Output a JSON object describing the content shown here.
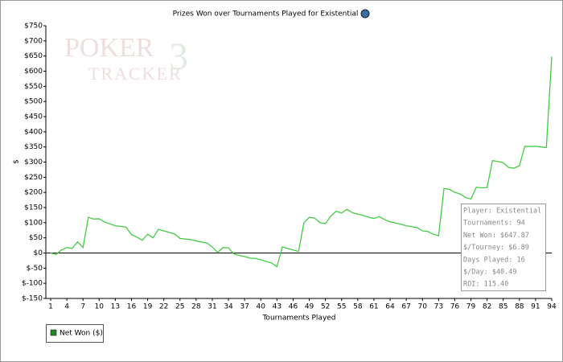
{
  "chart_data": {
    "type": "line",
    "title": "Prizes Won over Tournaments Played for Existential",
    "watermark": [
      "POKER",
      "TRACKER",
      "3"
    ],
    "x_label": "Tournaments Played",
    "y_label": "$",
    "x": [
      1,
      2,
      3,
      4,
      5,
      6,
      7,
      8,
      9,
      10,
      11,
      12,
      13,
      14,
      15,
      16,
      17,
      18,
      19,
      20,
      21,
      22,
      23,
      24,
      25,
      26,
      27,
      28,
      29,
      30,
      31,
      32,
      33,
      34,
      35,
      36,
      37,
      38,
      39,
      40,
      41,
      42,
      43,
      44,
      45,
      46,
      47,
      48,
      49,
      50,
      51,
      52,
      53,
      54,
      55,
      56,
      57,
      58,
      59,
      60,
      61,
      62,
      63,
      64,
      65,
      66,
      67,
      68,
      69,
      70,
      71,
      72,
      73,
      74,
      75,
      76,
      77,
      78,
      79,
      80,
      81,
      82,
      83,
      84,
      85,
      86,
      87,
      88,
      89,
      90,
      91,
      92,
      93,
      94
    ],
    "series": [
      {
        "name": "Net Won ($)",
        "color": "#44cc44",
        "values": [
          0,
          -5,
          10,
          18,
          15,
          37,
          18,
          118,
          112,
          113,
          102,
          96,
          90,
          88,
          85,
          60,
          53,
          42,
          62,
          50,
          78,
          73,
          68,
          63,
          48,
          46,
          44,
          40,
          36,
          33,
          20,
          2,
          18,
          17,
          -3,
          -8,
          -12,
          -17,
          -18,
          -22,
          -28,
          -33,
          -45,
          20,
          15,
          10,
          5,
          100,
          118,
          115,
          100,
          97,
          122,
          138,
          132,
          144,
          133,
          128,
          124,
          118,
          114,
          120,
          110,
          103,
          99,
          95,
          90,
          87,
          84,
          73,
          71,
          62,
          57,
          213,
          210,
          200,
          195,
          183,
          178,
          217,
          215,
          216,
          305,
          302,
          298,
          282,
          280,
          288,
          352,
          352,
          352,
          350,
          348,
          648
        ]
      }
    ],
    "xlim": [
      1,
      94
    ],
    "xticks": [
      1,
      4,
      7,
      10,
      13,
      16,
      19,
      22,
      25,
      28,
      31,
      34,
      37,
      40,
      43,
      46,
      49,
      52,
      55,
      58,
      61,
      64,
      67,
      70,
      73,
      76,
      79,
      82,
      85,
      88,
      91,
      94
    ],
    "ylim": [
      -150,
      750
    ],
    "yticks": [
      {
        "value": -150,
        "label": "$-150"
      },
      {
        "value": -100,
        "label": "$-100"
      },
      {
        "value": -50,
        "label": "$-50"
      },
      {
        "value": 0,
        "label": "$0"
      },
      {
        "value": 50,
        "label": "$50"
      },
      {
        "value": 100,
        "label": "$100"
      },
      {
        "value": 150,
        "label": "$150"
      },
      {
        "value": 200,
        "label": "$200"
      },
      {
        "value": 250,
        "label": "$250"
      },
      {
        "value": 300,
        "label": "$300"
      },
      {
        "value": 350,
        "label": "$350"
      },
      {
        "value": 400,
        "label": "$400"
      },
      {
        "value": 450,
        "label": "$450"
      },
      {
        "value": 500,
        "label": "$500"
      },
      {
        "value": 550,
        "label": "$550"
      },
      {
        "value": 600,
        "label": "$600"
      },
      {
        "value": 650,
        "label": "$650"
      },
      {
        "value": 700,
        "label": "$700"
      },
      {
        "value": 750,
        "label": "$750"
      }
    ],
    "grid": false,
    "stats": [
      "Player: Existential",
      "Tournaments: 94",
      "Net Won: $647.87",
      "$/Tourney: $6.89",
      "Days Played: 16",
      "$/Day: $40.49",
      "ROI: 115.40"
    ]
  }
}
